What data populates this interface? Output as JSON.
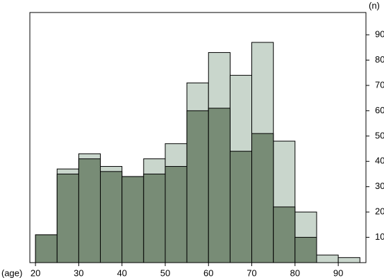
{
  "chart_data": {
    "type": "histogram",
    "x_label": "(age)",
    "y_label": "(n)",
    "bins": [
      20,
      25,
      30,
      35,
      40,
      45,
      50,
      55,
      60,
      65,
      70,
      75,
      80,
      85,
      90,
      95
    ],
    "series": [
      {
        "color": "#c9d6cc",
        "values": [
          11,
          37,
          43,
          38,
          34,
          41,
          47,
          71,
          83,
          74,
          87,
          48,
          20,
          3,
          2
        ]
      },
      {
        "color": "#788c76",
        "values": [
          11,
          35,
          41,
          36,
          34,
          35,
          38,
          60,
          61,
          44,
          51,
          22,
          10,
          0,
          0
        ]
      }
    ],
    "xlim": [
      18.7,
      96.4
    ],
    "xticks": [
      20,
      30,
      40,
      50,
      60,
      70,
      80,
      90
    ],
    "ylim": [
      0,
      98.8
    ],
    "yticks": [
      10,
      20,
      30,
      40,
      50,
      60,
      70,
      80,
      90
    ]
  }
}
